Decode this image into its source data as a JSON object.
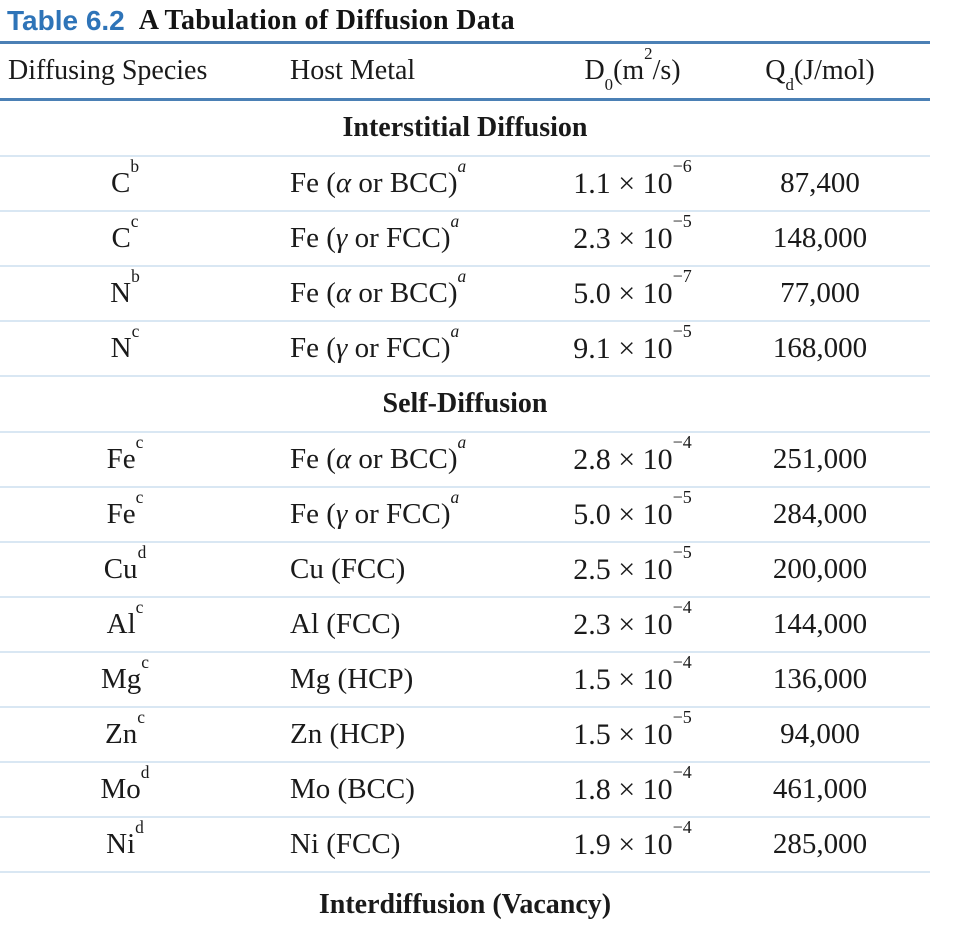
{
  "title": {
    "label": "Table 6.2",
    "text": "A Tabulation of Diffusion Data"
  },
  "header": {
    "col1": "Diffusing Species",
    "col2": "Host Metal",
    "col3": {
      "base": "D",
      "sub": "0",
      "pre": "(m",
      "sup": "2",
      "post": "/s)"
    },
    "col4": {
      "base": "Q",
      "sub": "d",
      "post": "(J/mol)"
    }
  },
  "colors": {
    "accent_blue": "#2e74b8",
    "rule_blue": "#4b80b5",
    "rule_light": "#d9e7f3",
    "text": "#1a1a1a"
  },
  "sections": [
    {
      "name": "Interstitial Diffusion",
      "rows": [
        {
          "species": "C",
          "species_sup": "b",
          "host_pre": "Fe (",
          "host_greek": "α",
          "host_post": " or BCC)",
          "host_sup": "a",
          "d0_base": "1.1 × 10",
          "d0_exp": "−6",
          "qd": "87,400"
        },
        {
          "species": "C",
          "species_sup": "c",
          "host_pre": "Fe (",
          "host_greek": "γ",
          "host_post": " or FCC)",
          "host_sup": "a",
          "d0_base": "2.3 × 10",
          "d0_exp": "−5",
          "qd": "148,000"
        },
        {
          "species": "N",
          "species_sup": "b",
          "host_pre": "Fe (",
          "host_greek": "α",
          "host_post": " or BCC)",
          "host_sup": "a",
          "d0_base": "5.0 × 10",
          "d0_exp": "−7",
          "qd": "77,000"
        },
        {
          "species": "N",
          "species_sup": "c",
          "host_pre": "Fe (",
          "host_greek": "γ",
          "host_post": " or FCC)",
          "host_sup": "a",
          "d0_base": "9.1 × 10",
          "d0_exp": "−5",
          "qd": "168,000"
        }
      ]
    },
    {
      "name": "Self-Diffusion",
      "rows": [
        {
          "species": "Fe",
          "species_sup": "c",
          "host_pre": "Fe (",
          "host_greek": "α",
          "host_post": " or BCC)",
          "host_sup": "a",
          "d0_base": "2.8 × 10",
          "d0_exp": "−4",
          "qd": "251,000"
        },
        {
          "species": "Fe",
          "species_sup": "c",
          "host_pre": "Fe (",
          "host_greek": "γ",
          "host_post": " or FCC)",
          "host_sup": "a",
          "d0_base": "5.0 × 10",
          "d0_exp": "−5",
          "qd": "284,000"
        },
        {
          "species": "Cu",
          "species_sup": "d",
          "host_pre": "Cu (FCC)",
          "host_greek": "",
          "host_post": "",
          "host_sup": "",
          "d0_base": "2.5 × 10",
          "d0_exp": "−5",
          "qd": "200,000"
        },
        {
          "species": "Al",
          "species_sup": "c",
          "host_pre": "Al (FCC)",
          "host_greek": "",
          "host_post": "",
          "host_sup": "",
          "d0_base": "2.3 × 10",
          "d0_exp": "−4",
          "qd": "144,000"
        },
        {
          "species": "Mg",
          "species_sup": "c",
          "host_pre": "Mg (HCP)",
          "host_greek": "",
          "host_post": "",
          "host_sup": "",
          "d0_base": "1.5 × 10",
          "d0_exp": "−4",
          "qd": "136,000"
        },
        {
          "species": "Zn",
          "species_sup": "c",
          "host_pre": "Zn (HCP)",
          "host_greek": "",
          "host_post": "",
          "host_sup": "",
          "d0_base": "1.5 × 10",
          "d0_exp": "−5",
          "qd": "94,000"
        },
        {
          "species": "Mo",
          "species_sup": "d",
          "host_pre": "Mo (BCC)",
          "host_greek": "",
          "host_post": "",
          "host_sup": "",
          "d0_base": "1.8 × 10",
          "d0_exp": "−4",
          "qd": "461,000"
        },
        {
          "species": "Ni",
          "species_sup": "d",
          "host_pre": "Ni (FCC)",
          "host_greek": "",
          "host_post": "",
          "host_sup": "",
          "d0_base": "1.9 × 10",
          "d0_exp": "−4",
          "qd": "285,000"
        }
      ]
    },
    {
      "name": "Interdiffusion (Vacancy)",
      "rows": []
    }
  ]
}
